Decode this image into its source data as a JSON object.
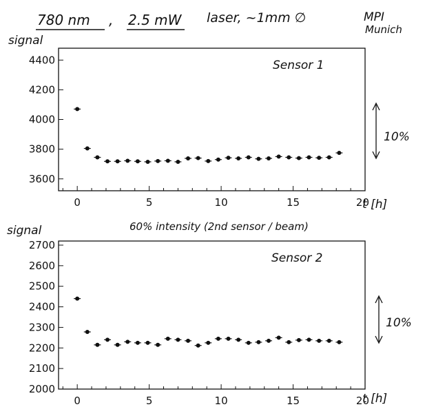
{
  "header": {
    "wavelength": "780 nm",
    "power": "2.5 mW",
    "rest": "laser, ~1mm ∅",
    "institute_line1": "MPI",
    "institute_line2": "Munich"
  },
  "middle_note": "60% intensity (2nd sensor / beam)",
  "chart_data": [
    {
      "type": "scatter",
      "title": "Sensor 1",
      "ylabel": "signal",
      "xlabel": "t [h]",
      "xlim": [
        -1.3,
        20
      ],
      "ylim": [
        3520,
        4480
      ],
      "xticks": [
        0,
        5,
        10,
        15,
        20
      ],
      "xtick_labels": [
        "0",
        "5",
        "10",
        "15",
        "20"
      ],
      "yticks": [
        3600,
        3800,
        4000,
        4200,
        4400
      ],
      "ytick_labels": [
        "3600",
        "3800",
        "4000",
        "4200",
        "4400"
      ],
      "grid": false,
      "scale_annotation": "10%",
      "x": [
        0,
        0.7,
        1.4,
        2.1,
        2.8,
        3.5,
        4.2,
        4.9,
        5.6,
        6.3,
        7.0,
        7.7,
        8.4,
        9.1,
        9.8,
        10.5,
        11.2,
        11.9,
        12.6,
        13.3,
        14.0,
        14.7,
        15.4,
        16.1,
        16.8,
        17.5,
        18.2
      ],
      "y": [
        4070,
        3805,
        3745,
        3718,
        3718,
        3722,
        3718,
        3715,
        3720,
        3722,
        3715,
        3738,
        3740,
        3720,
        3730,
        3742,
        3738,
        3745,
        3735,
        3738,
        3750,
        3745,
        3740,
        3745,
        3742,
        3745,
        3775
      ]
    },
    {
      "type": "scatter",
      "title": "Sensor 2",
      "ylabel": "signal",
      "xlabel": "t [h]",
      "xlim": [
        -1.3,
        20
      ],
      "ylim": [
        2000,
        2720
      ],
      "xticks": [
        0,
        5,
        10,
        15,
        20
      ],
      "xtick_labels": [
        "0",
        "5",
        "10",
        "15",
        "20"
      ],
      "yticks": [
        2000,
        2100,
        2200,
        2300,
        2400,
        2500,
        2600,
        2700
      ],
      "ytick_labels": [
        "2000",
        "2100",
        "2200",
        "2300",
        "2400",
        "2500",
        "2600",
        "2700"
      ],
      "grid": false,
      "scale_annotation": "10%",
      "x": [
        0,
        0.7,
        1.4,
        2.1,
        2.8,
        3.5,
        4.2,
        4.9,
        5.6,
        6.3,
        7.0,
        7.7,
        8.4,
        9.1,
        9.8,
        10.5,
        11.2,
        11.9,
        12.6,
        13.3,
        14.0,
        14.7,
        15.4,
        16.1,
        16.8,
        17.5,
        18.2
      ],
      "y": [
        2440,
        2278,
        2215,
        2240,
        2215,
        2230,
        2225,
        2225,
        2215,
        2245,
        2240,
        2235,
        2212,
        2225,
        2245,
        2245,
        2240,
        2225,
        2228,
        2235,
        2250,
        2228,
        2238,
        2240,
        2235,
        2235,
        2228
      ]
    }
  ]
}
